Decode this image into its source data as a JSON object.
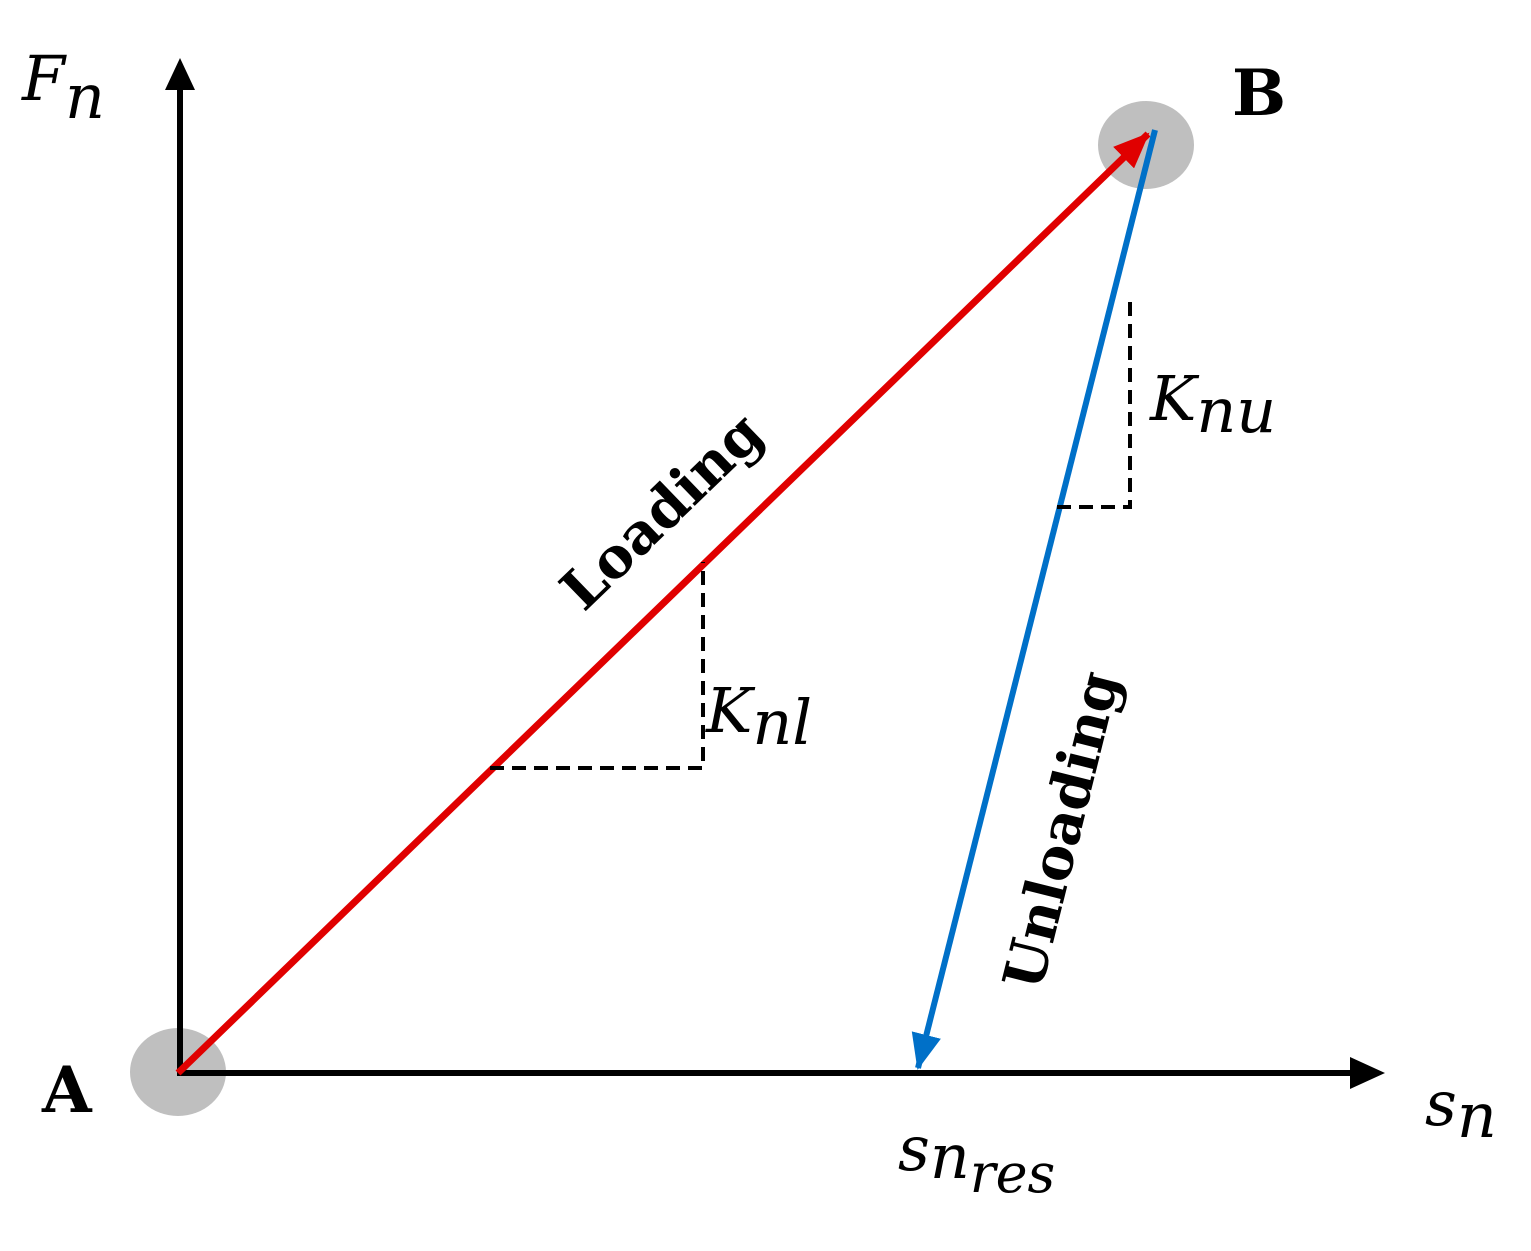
{
  "y_axis_label": {
    "base": "F",
    "sub": "n"
  },
  "x_axis_label": {
    "base": "s",
    "sub": "n"
  },
  "points": {
    "start": "A",
    "peak": "B"
  },
  "loading": {
    "label": "Loading",
    "slope": {
      "base": "K",
      "sub": "nl"
    }
  },
  "unloading": {
    "label": "Unloading",
    "slope": {
      "base": "K",
      "sub": "nu"
    }
  },
  "residual": {
    "base": "s",
    "sub": "n",
    "subsub": "res"
  }
}
